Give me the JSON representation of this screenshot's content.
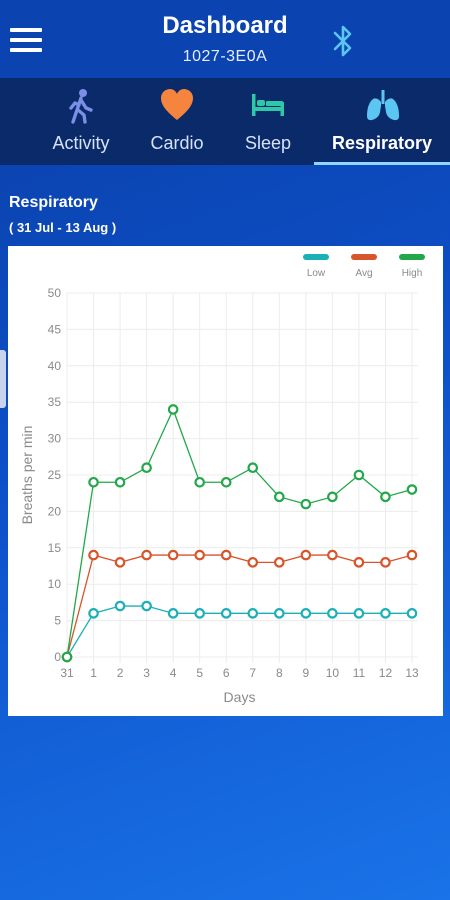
{
  "header": {
    "title": "Dashboard",
    "device_id": "1027-3E0A",
    "menu_icon": "hamburger-menu-icon",
    "bluetooth_icon": "bluetooth-icon"
  },
  "tabs": [
    {
      "label": "Activity",
      "icon": "walking-person-icon",
      "color": "#7b8fe6",
      "active": false
    },
    {
      "label": "Cardio",
      "icon": "heart-icon",
      "color": "#f5843f",
      "active": false
    },
    {
      "label": "Sleep",
      "icon": "bed-icon",
      "color": "#2fc7a6",
      "active": false
    },
    {
      "label": "Respiratory",
      "icon": "lungs-icon",
      "color": "#5cc6f2",
      "active": true
    }
  ],
  "section": {
    "title": "Respiratory",
    "range": "( 31 Jul - 13 Aug )"
  },
  "chart_data": {
    "type": "line",
    "title": "",
    "xlabel": "Days",
    "ylabel": "Breaths per min",
    "x": [
      "31",
      "1",
      "2",
      "3",
      "4",
      "5",
      "6",
      "7",
      "8",
      "9",
      "10",
      "11",
      "12",
      "13"
    ],
    "ylim": [
      0,
      50
    ],
    "yticks": [
      0,
      5,
      10,
      15,
      20,
      25,
      30,
      35,
      40,
      45,
      50
    ],
    "grid": true,
    "legend_position": "top-right",
    "series": [
      {
        "name": "Low",
        "color": "#1ab0b5",
        "values": [
          0,
          6,
          7,
          7,
          6,
          6,
          6,
          6,
          6,
          6,
          6,
          6,
          6,
          6
        ]
      },
      {
        "name": "Avg",
        "color": "#d8542a",
        "values": [
          0,
          14,
          13,
          14,
          14,
          14,
          14,
          13,
          13,
          14,
          14,
          13,
          13,
          14
        ]
      },
      {
        "name": "High",
        "color": "#22a84a",
        "values": [
          0,
          24,
          24,
          26,
          34,
          24,
          24,
          26,
          22,
          21,
          22,
          25,
          22,
          23
        ]
      }
    ]
  }
}
